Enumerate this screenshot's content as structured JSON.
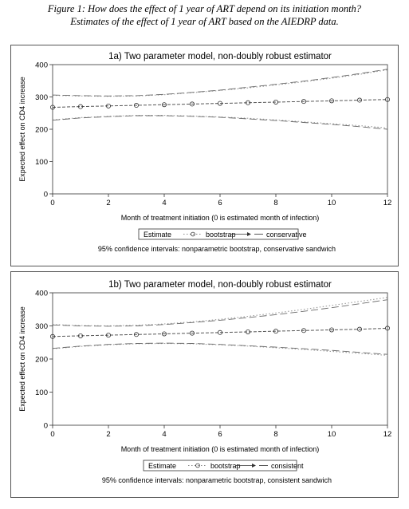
{
  "caption": {
    "line1": "Figure 1: How does the effect of 1 year of ART depend on its initiation month?",
    "line2": "Estimates of the effect of 1 year of ART based on the AIEDRP data."
  },
  "chart_data": [
    {
      "type": "line",
      "title": "1a) Two parameter model, non-doubly robust estimator",
      "xlabel": "Month of treatment initiation (0 is estimated month of infection)",
      "ylabel": "Expected effect on CD4 increase",
      "xlim": [
        0,
        12
      ],
      "ylim": [
        0,
        400
      ],
      "xticks": [
        "0",
        "2",
        "4",
        "6",
        "8",
        "10",
        "12"
      ],
      "yticks": [
        "0",
        "100",
        "200",
        "300",
        "400"
      ],
      "x": [
        0,
        1,
        2,
        3,
        4,
        5,
        6,
        7,
        8,
        9,
        10,
        11,
        12
      ],
      "series": [
        {
          "name": "Estimate",
          "role": "estimate",
          "values": [
            268,
            270,
            272,
            274,
            276,
            278,
            280,
            282,
            284,
            286,
            288,
            290,
            292
          ]
        },
        {
          "name": "bootstrap",
          "role": "ci_upper_bootstrap",
          "values": [
            305,
            303,
            302,
            303,
            307,
            313,
            320,
            328,
            337,
            347,
            358,
            370,
            384
          ]
        },
        {
          "name": "bootstrap",
          "role": "ci_lower_bootstrap",
          "values": [
            229,
            236,
            240,
            243,
            243,
            241,
            238,
            234,
            229,
            223,
            217,
            211,
            204
          ]
        },
        {
          "name": "conservative",
          "role": "ci_upper_sandwich",
          "values": [
            306,
            304,
            303,
            304,
            308,
            314,
            321,
            330,
            339,
            349,
            360,
            372,
            386
          ]
        },
        {
          "name": "conservative",
          "role": "ci_lower_sandwich",
          "values": [
            228,
            235,
            239,
            242,
            242,
            240,
            237,
            232,
            227,
            221,
            215,
            208,
            200
          ]
        }
      ],
      "legend": {
        "title": "Estimate",
        "items": [
          "bootstrap",
          "conservative"
        ],
        "placement": "bottom"
      },
      "note": "95% confidence intervals: nonparametric bootstrap, conservative sandwich",
      "grid": false
    },
    {
      "type": "line",
      "title": "1b) Two parameter model, non-doubly robust estimator",
      "xlabel": "Month of treatment initiation (0 is estimated month of infection)",
      "ylabel": "Expected effect on CD4 increase",
      "xlim": [
        0,
        12
      ],
      "ylim": [
        0,
        400
      ],
      "xticks": [
        "0",
        "2",
        "4",
        "6",
        "8",
        "10",
        "12"
      ],
      "yticks": [
        "0",
        "100",
        "200",
        "300",
        "400"
      ],
      "x": [
        0,
        1,
        2,
        3,
        4,
        5,
        6,
        7,
        8,
        9,
        10,
        11,
        12
      ],
      "series": [
        {
          "name": "Estimate",
          "role": "estimate",
          "values": [
            268,
            270,
            272,
            274,
            276,
            278,
            280,
            282,
            284,
            286,
            288,
            290,
            293
          ]
        },
        {
          "name": "bootstrap",
          "role": "ci_upper_bootstrap",
          "values": [
            304,
            301,
            300,
            302,
            306,
            312,
            320,
            329,
            339,
            350,
            362,
            374,
            386
          ]
        },
        {
          "name": "bootstrap",
          "role": "ci_lower_bootstrap",
          "values": [
            231,
            238,
            243,
            246,
            247,
            246,
            243,
            239,
            234,
            229,
            223,
            217,
            211
          ]
        },
        {
          "name": "consistent",
          "role": "ci_upper_sandwich",
          "values": [
            303,
            300,
            299,
            300,
            304,
            310,
            317,
            325,
            334,
            344,
            355,
            367,
            379
          ]
        },
        {
          "name": "consistent",
          "role": "ci_lower_sandwich",
          "values": [
            232,
            239,
            244,
            247,
            248,
            247,
            244,
            240,
            236,
            231,
            226,
            220,
            214
          ]
        }
      ],
      "legend": {
        "title": "Estimate",
        "items": [
          "bootstrap",
          "consistent"
        ],
        "placement": "bottom"
      },
      "note": "95% confidence intervals: nonparametric bootstrap, consistent sandwich",
      "grid": false
    }
  ]
}
